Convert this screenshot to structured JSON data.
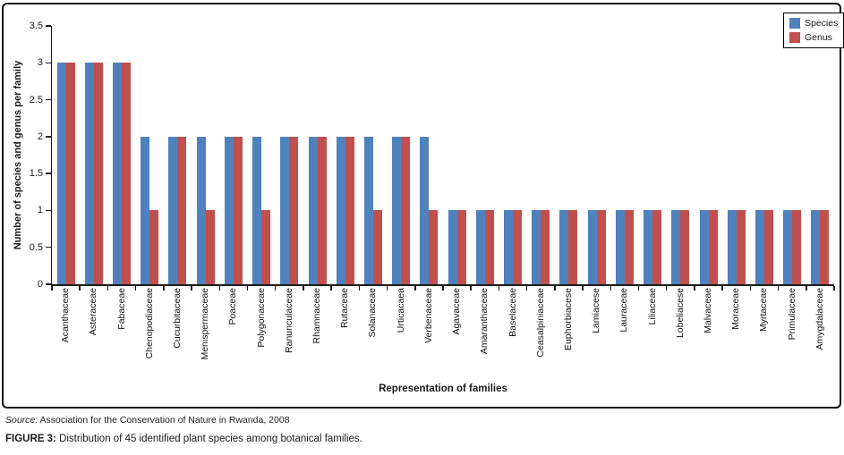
{
  "figure": {
    "source_label": "Source",
    "source_rest": ": Association for the Conservation of Nature in Rwanda, 2008",
    "caption_label": "FIGURE 3:",
    "caption_text": " Distribution of 45 identified plant species among botanical families."
  },
  "chart_data": {
    "type": "bar",
    "title": "",
    "xlabel": "Representation of families",
    "ylabel": "Number of species and genus per family",
    "ylim": [
      0,
      3.5
    ],
    "yticks": [
      0,
      0.5,
      1,
      1.5,
      2,
      2.5,
      3,
      3.5
    ],
    "grid": false,
    "legend_position": "top-right",
    "colors": {
      "species": "#4F81BD",
      "genus": "#C0504D"
    },
    "categories": [
      "Acanthaceae",
      "Asteraceae",
      "Fabaceae",
      "Chenopodiaceae",
      "Cucurbitaceae",
      "Menispermaceae",
      "Poaceae",
      "Polygonaceae",
      "Ranunculaceae",
      "Rhamnaceae",
      "Rutaceae",
      "Solanaceae",
      "Urticacaea",
      "Verbenaceae",
      "Agavaceae",
      "Amaranthaceae",
      "Baselaceae",
      "Ceasalpiniaceae",
      "Euphorbiacese",
      "Lamiacese",
      "Lauraceae",
      "Liliaceae",
      "Lobeliacese",
      "Malvaceae",
      "Moraceae",
      "Myrtaceae",
      "Primulaceae",
      "Amygdalaceae"
    ],
    "series": [
      {
        "name": "Species",
        "values": [
          3,
          3,
          3,
          2,
          2,
          2,
          2,
          2,
          2,
          2,
          2,
          2,
          2,
          2,
          1,
          1,
          1,
          1,
          1,
          1,
          1,
          1,
          1,
          1,
          1,
          1,
          1,
          1
        ]
      },
      {
        "name": "Genus",
        "values": [
          3,
          3,
          3,
          1,
          2,
          1,
          2,
          1,
          2,
          2,
          2,
          1,
          2,
          1,
          1,
          1,
          1,
          1,
          1,
          1,
          1,
          1,
          1,
          1,
          1,
          1,
          1,
          1
        ]
      }
    ]
  }
}
